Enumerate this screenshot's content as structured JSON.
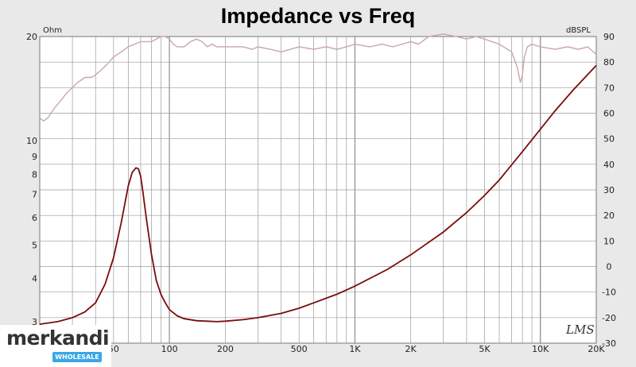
{
  "chart_data": {
    "type": "line",
    "title": "Impedance vs Freq",
    "left_axis": {
      "unit_label": "Ohm",
      "scale": "log",
      "range": [
        2.6,
        20
      ],
      "ticks": [
        "20",
        "10",
        "9",
        "8",
        "7",
        "6",
        "5",
        "4",
        "3"
      ]
    },
    "right_axis": {
      "unit_label": "dBSPL",
      "range": [
        -30,
        90
      ],
      "ticks": [
        "90",
        "80",
        "70",
        "60",
        "50",
        "40",
        "30",
        "20",
        "10",
        "0",
        "-10",
        "-20",
        "-30"
      ]
    },
    "x_axis": {
      "scale": "log",
      "range": [
        20,
        20000
      ],
      "tick_values": [
        50,
        100,
        200,
        500,
        1000,
        2000,
        5000,
        10000,
        20000
      ],
      "tick_labels": [
        "50",
        "100",
        "200",
        "500",
        "1K",
        "2K",
        "5K",
        "10K",
        "20K"
      ]
    },
    "grid": true,
    "series": [
      {
        "role": "impedance",
        "axis": "left",
        "color": "#7a0c0c",
        "x": [
          20,
          25,
          30,
          35,
          40,
          45,
          50,
          55,
          60,
          63,
          66,
          68,
          70,
          72,
          75,
          80,
          85,
          90,
          95,
          100,
          110,
          120,
          140,
          160,
          180,
          200,
          250,
          300,
          400,
          500,
          600,
          800,
          1000,
          1500,
          2000,
          3000,
          4000,
          5000,
          6000,
          8000,
          10000,
          12000,
          15000,
          20000
        ],
        "y": [
          2.95,
          3.0,
          3.08,
          3.2,
          3.4,
          3.85,
          4.6,
          5.8,
          7.4,
          8.1,
          8.35,
          8.3,
          7.9,
          7.1,
          6.0,
          4.7,
          3.95,
          3.6,
          3.4,
          3.25,
          3.12,
          3.06,
          3.02,
          3.01,
          3.0,
          3.01,
          3.04,
          3.08,
          3.17,
          3.28,
          3.4,
          3.6,
          3.8,
          4.25,
          4.68,
          5.45,
          6.2,
          6.95,
          7.7,
          9.3,
          10.8,
          12.2,
          14.0,
          16.5
        ]
      },
      {
        "role": "spl",
        "axis": "right",
        "color": "#c9a7a9",
        "x": [
          20,
          21,
          22,
          24,
          26,
          28,
          30,
          32,
          35,
          38,
          40,
          43,
          46,
          50,
          55,
          60,
          65,
          70,
          75,
          80,
          85,
          90,
          95,
          100,
          105,
          110,
          120,
          130,
          140,
          150,
          160,
          170,
          180,
          200,
          220,
          250,
          280,
          300,
          350,
          400,
          450,
          500,
          600,
          700,
          800,
          900,
          1000,
          1200,
          1400,
          1600,
          1800,
          2000,
          2200,
          2500,
          3000,
          3500,
          4000,
          4500,
          5000,
          6000,
          7000,
          7500,
          7800,
          8000,
          8200,
          8500,
          9000,
          10000,
          12000,
          14000,
          16000,
          18000,
          20000
        ],
        "y": [
          58,
          57,
          58,
          62,
          65,
          68,
          70,
          72,
          74,
          74,
          75,
          77,
          79,
          82,
          84,
          86,
          87,
          88,
          88,
          88,
          89,
          90,
          90,
          89,
          87,
          86,
          86,
          88,
          89,
          88,
          86,
          87,
          86,
          86,
          86,
          86,
          85,
          86,
          85,
          84,
          85,
          86,
          85,
          86,
          85,
          86,
          87,
          86,
          87,
          86,
          87,
          88,
          87,
          90,
          91,
          90,
          89,
          90,
          89,
          87,
          84,
          78,
          72,
          75,
          82,
          86,
          87,
          86,
          85,
          86,
          85,
          86,
          83
        ]
      }
    ],
    "annotation": "LMS"
  },
  "watermark": {
    "brand": "merkandi",
    "badge": "WHOLESALE"
  }
}
